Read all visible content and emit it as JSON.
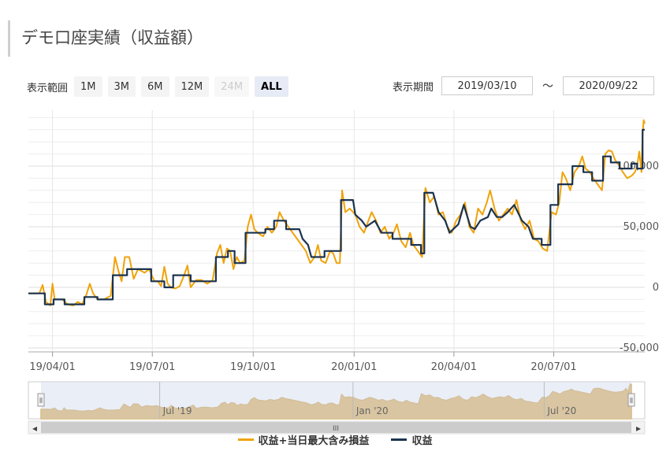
{
  "page": {
    "title": "デモ口座実績（収益額）"
  },
  "range_selector": {
    "label": "表示範囲",
    "buttons": [
      {
        "label": "1M",
        "state": "normal"
      },
      {
        "label": "3M",
        "state": "normal"
      },
      {
        "label": "6M",
        "state": "normal"
      },
      {
        "label": "12M",
        "state": "normal"
      },
      {
        "label": "24M",
        "state": "disabled"
      },
      {
        "label": "ALL",
        "state": "active"
      }
    ]
  },
  "period": {
    "label": "表示期間",
    "from": "2019/03/10",
    "separator": "～",
    "to": "2020/09/22"
  },
  "colors": {
    "series_max_loss": "#f0a30a",
    "series_profit": "#1b3350",
    "navigator_fill": "#d9a441",
    "navigator_mask": "#d9e0f0",
    "grid": "#e6e6e6"
  },
  "chart_data": {
    "type": "line",
    "x_start": "2019/03/10",
    "x_end": "2020/09/22",
    "ylim": [
      -50000,
      140000
    ],
    "y_ticks": [
      "-50,000",
      "0",
      "50,000",
      "100,000"
    ],
    "y_tick_values": [
      -50000,
      0,
      50000,
      100000
    ],
    "x_ticks": [
      "19/04/01",
      "19/07/01",
      "19/10/01",
      "20/01/01",
      "20/04/01",
      "20/07/01"
    ],
    "x_tick_dates": [
      "2019/04/01",
      "2019/07/01",
      "2019/10/01",
      "2020/01/01",
      "2020/04/01",
      "2020/07/01"
    ],
    "grid": true,
    "legend": "bottom-center",
    "series": [
      {
        "name": "収益+当日最大含み損益",
        "key": "max_loss",
        "points": [
          [
            "2019/03/10",
            -5000
          ],
          [
            "2019/03/20",
            -5000
          ],
          [
            "2019/03/23",
            2000
          ],
          [
            "2019/03/26",
            -12000
          ],
          [
            "2019/03/30",
            -15000
          ],
          [
            "2019/04/01",
            3000
          ],
          [
            "2019/04/03",
            -10000
          ],
          [
            "2019/04/10",
            -10000
          ],
          [
            "2019/04/15",
            -14000
          ],
          [
            "2019/04/20",
            -15000
          ],
          [
            "2019/04/24",
            -12000
          ],
          [
            "2019/04/28",
            -14000
          ],
          [
            "2019/05/02",
            -6000
          ],
          [
            "2019/05/05",
            3000
          ],
          [
            "2019/05/08",
            -5000
          ],
          [
            "2019/05/12",
            -10000
          ],
          [
            "2019/05/18",
            -10000
          ],
          [
            "2019/05/24",
            -7000
          ],
          [
            "2019/05/28",
            25000
          ],
          [
            "2019/05/31",
            14000
          ],
          [
            "2019/06/03",
            5000
          ],
          [
            "2019/06/06",
            25000
          ],
          [
            "2019/06/10",
            25000
          ],
          [
            "2019/06/14",
            7000
          ],
          [
            "2019/06/18",
            15000
          ],
          [
            "2019/06/24",
            12000
          ],
          [
            "2019/06/28",
            15000
          ],
          [
            "2019/07/03",
            5000
          ],
          [
            "2019/07/06",
            5000
          ],
          [
            "2019/07/09",
            1000
          ],
          [
            "2019/07/12",
            17000
          ],
          [
            "2019/07/15",
            3000
          ],
          [
            "2019/07/18",
            0
          ],
          [
            "2019/07/22",
            -1000
          ],
          [
            "2019/07/26",
            1000
          ],
          [
            "2019/07/30",
            10000
          ],
          [
            "2019/08/02",
            18000
          ],
          [
            "2019/08/05",
            0
          ],
          [
            "2019/08/10",
            6000
          ],
          [
            "2019/08/15",
            6000
          ],
          [
            "2019/08/20",
            3000
          ],
          [
            "2019/08/25",
            6000
          ],
          [
            "2019/08/29",
            28000
          ],
          [
            "2019/09/01",
            35000
          ],
          [
            "2019/09/04",
            20000
          ],
          [
            "2019/09/07",
            32000
          ],
          [
            "2019/09/10",
            30000
          ],
          [
            "2019/09/13",
            15000
          ],
          [
            "2019/09/16",
            25000
          ],
          [
            "2019/09/19",
            20000
          ],
          [
            "2019/09/23",
            22000
          ],
          [
            "2019/09/26",
            50000
          ],
          [
            "2019/09/29",
            60000
          ],
          [
            "2019/10/02",
            48000
          ],
          [
            "2019/10/05",
            45000
          ],
          [
            "2019/10/10",
            42000
          ],
          [
            "2019/10/14",
            50000
          ],
          [
            "2019/10/18",
            45000
          ],
          [
            "2019/10/22",
            50000
          ],
          [
            "2019/10/25",
            62000
          ],
          [
            "2019/10/29",
            55000
          ],
          [
            "2019/11/02",
            50000
          ],
          [
            "2019/11/06",
            45000
          ],
          [
            "2019/11/10",
            40000
          ],
          [
            "2019/11/14",
            35000
          ],
          [
            "2019/11/18",
            30000
          ],
          [
            "2019/11/22",
            20000
          ],
          [
            "2019/11/26",
            25000
          ],
          [
            "2019/11/29",
            35000
          ],
          [
            "2019/12/02",
            22000
          ],
          [
            "2019/12/06",
            20000
          ],
          [
            "2019/12/10",
            30000
          ],
          [
            "2019/12/13",
            28000
          ],
          [
            "2019/12/16",
            20000
          ],
          [
            "2019/12/19",
            20000
          ],
          [
            "2019/12/21",
            80000
          ],
          [
            "2019/12/24",
            62000
          ],
          [
            "2019/12/28",
            65000
          ],
          [
            "2020/01/02",
            60000
          ],
          [
            "2020/01/06",
            50000
          ],
          [
            "2020/01/10",
            45000
          ],
          [
            "2020/01/14",
            55000
          ],
          [
            "2020/01/17",
            62000
          ],
          [
            "2020/01/21",
            55000
          ],
          [
            "2020/01/25",
            45000
          ],
          [
            "2020/01/29",
            50000
          ],
          [
            "2020/02/02",
            40000
          ],
          [
            "2020/02/06",
            45000
          ],
          [
            "2020/02/09",
            52000
          ],
          [
            "2020/02/13",
            38000
          ],
          [
            "2020/02/17",
            33000
          ],
          [
            "2020/02/21",
            45000
          ],
          [
            "2020/02/24",
            35000
          ],
          [
            "2020/02/28",
            30000
          ],
          [
            "2020/03/03",
            25000
          ],
          [
            "2020/03/06",
            82000
          ],
          [
            "2020/03/10",
            70000
          ],
          [
            "2020/03/14",
            75000
          ],
          [
            "2020/03/18",
            60000
          ],
          [
            "2020/03/22",
            62000
          ],
          [
            "2020/03/26",
            50000
          ],
          [
            "2020/03/30",
            45000
          ],
          [
            "2020/04/03",
            55000
          ],
          [
            "2020/04/07",
            60000
          ],
          [
            "2020/04/11",
            70000
          ],
          [
            "2020/04/15",
            50000
          ],
          [
            "2020/04/19",
            45000
          ],
          [
            "2020/04/23",
            65000
          ],
          [
            "2020/04/27",
            60000
          ],
          [
            "2020/05/01",
            70000
          ],
          [
            "2020/05/04",
            80000
          ],
          [
            "2020/05/08",
            65000
          ],
          [
            "2020/05/12",
            55000
          ],
          [
            "2020/05/16",
            60000
          ],
          [
            "2020/05/20",
            65000
          ],
          [
            "2020/05/24",
            60000
          ],
          [
            "2020/05/28",
            72000
          ],
          [
            "2020/06/01",
            55000
          ],
          [
            "2020/06/05",
            48000
          ],
          [
            "2020/06/09",
            55000
          ],
          [
            "2020/06/13",
            40000
          ],
          [
            "2020/06/17",
            38000
          ],
          [
            "2020/06/21",
            32000
          ],
          [
            "2020/06/25",
            30000
          ],
          [
            "2020/06/29",
            62000
          ],
          [
            "2020/07/03",
            60000
          ],
          [
            "2020/07/06",
            70000
          ],
          [
            "2020/07/09",
            95000
          ],
          [
            "2020/07/12",
            90000
          ],
          [
            "2020/07/16",
            80000
          ],
          [
            "2020/07/20",
            95000
          ],
          [
            "2020/07/24",
            100000
          ],
          [
            "2020/07/27",
            108000
          ],
          [
            "2020/07/30",
            98000
          ],
          [
            "2020/08/03",
            95000
          ],
          [
            "2020/08/06",
            90000
          ],
          [
            "2020/08/10",
            85000
          ],
          [
            "2020/08/14",
            80000
          ],
          [
            "2020/08/17",
            110000
          ],
          [
            "2020/08/20",
            113000
          ],
          [
            "2020/08/23",
            112000
          ],
          [
            "2020/08/26",
            105000
          ],
          [
            "2020/08/30",
            100000
          ],
          [
            "2020/09/02",
            95000
          ],
          [
            "2020/09/06",
            90000
          ],
          [
            "2020/09/10",
            92000
          ],
          [
            "2020/09/13",
            95000
          ],
          [
            "2020/09/15",
            100000
          ],
          [
            "2020/09/17",
            112000
          ],
          [
            "2020/09/19",
            95000
          ],
          [
            "2020/09/20",
            125000
          ],
          [
            "2020/09/21",
            138000
          ],
          [
            "2020/09/22",
            135000
          ]
        ]
      },
      {
        "name": "収益",
        "key": "profit",
        "points": [
          [
            "2019/03/10",
            -5000
          ],
          [
            "2019/03/25",
            -5000
          ],
          [
            "2019/03/25",
            -14000
          ],
          [
            "2019/04/02",
            -14000
          ],
          [
            "2019/04/02",
            -10000
          ],
          [
            "2019/04/12",
            -10000
          ],
          [
            "2019/04/12",
            -14000
          ],
          [
            "2019/04/30",
            -14000
          ],
          [
            "2019/04/30",
            -8000
          ],
          [
            "2019/05/12",
            -8000
          ],
          [
            "2019/05/12",
            -10000
          ],
          [
            "2019/05/26",
            -10000
          ],
          [
            "2019/05/26",
            10000
          ],
          [
            "2019/06/08",
            10000
          ],
          [
            "2019/06/08",
            15000
          ],
          [
            "2019/06/30",
            15000
          ],
          [
            "2019/06/30",
            5000
          ],
          [
            "2019/07/12",
            5000
          ],
          [
            "2019/07/12",
            0
          ],
          [
            "2019/07/20",
            0
          ],
          [
            "2019/07/20",
            10000
          ],
          [
            "2019/08/05",
            10000
          ],
          [
            "2019/08/05",
            5000
          ],
          [
            "2019/08/28",
            5000
          ],
          [
            "2019/08/28",
            25000
          ],
          [
            "2019/09/08",
            25000
          ],
          [
            "2019/09/08",
            30000
          ],
          [
            "2019/09/14",
            30000
          ],
          [
            "2019/09/14",
            20000
          ],
          [
            "2019/09/24",
            20000
          ],
          [
            "2019/09/24",
            45000
          ],
          [
            "2019/10/12",
            45000
          ],
          [
            "2019/10/12",
            48000
          ],
          [
            "2019/10/20",
            48000
          ],
          [
            "2019/10/20",
            55000
          ],
          [
            "2019/10/31",
            55000
          ],
          [
            "2019/10/31",
            48000
          ],
          [
            "2019/11/12",
            48000
          ],
          [
            "2019/11/15",
            40000
          ],
          [
            "2019/11/20",
            35000
          ],
          [
            "2019/11/23",
            25000
          ],
          [
            "2019/12/05",
            25000
          ],
          [
            "2019/12/05",
            30000
          ],
          [
            "2019/12/20",
            30000
          ],
          [
            "2019/12/20",
            72000
          ],
          [
            "2019/12/31",
            72000
          ],
          [
            "2020/01/02",
            60000
          ],
          [
            "2020/01/08",
            55000
          ],
          [
            "2020/01/12",
            50000
          ],
          [
            "2020/01/20",
            55000
          ],
          [
            "2020/01/26",
            45000
          ],
          [
            "2020/02/05",
            45000
          ],
          [
            "2020/02/05",
            40000
          ],
          [
            "2020/02/22",
            40000
          ],
          [
            "2020/02/22",
            35000
          ],
          [
            "2020/03/02",
            35000
          ],
          [
            "2020/03/02",
            28000
          ],
          [
            "2020/03/05",
            28000
          ],
          [
            "2020/03/05",
            78000
          ],
          [
            "2020/03/13",
            78000
          ],
          [
            "2020/03/18",
            62000
          ],
          [
            "2020/03/24",
            55000
          ],
          [
            "2020/03/28",
            45000
          ],
          [
            "2020/04/05",
            52000
          ],
          [
            "2020/04/10",
            68000
          ],
          [
            "2020/04/16",
            50000
          ],
          [
            "2020/04/20",
            48000
          ],
          [
            "2020/04/25",
            55000
          ],
          [
            "2020/05/02",
            58000
          ],
          [
            "2020/05/05",
            65000
          ],
          [
            "2020/05/10",
            58000
          ],
          [
            "2020/05/15",
            58000
          ],
          [
            "2020/05/20",
            62000
          ],
          [
            "2020/05/26",
            68000
          ],
          [
            "2020/06/02",
            55000
          ],
          [
            "2020/06/08",
            50000
          ],
          [
            "2020/06/12",
            40000
          ],
          [
            "2020/06/20",
            40000
          ],
          [
            "2020/06/20",
            35000
          ],
          [
            "2020/06/28",
            35000
          ],
          [
            "2020/06/28",
            68000
          ],
          [
            "2020/07/05",
            68000
          ],
          [
            "2020/07/05",
            85000
          ],
          [
            "2020/07/18",
            85000
          ],
          [
            "2020/07/18",
            100000
          ],
          [
            "2020/07/28",
            100000
          ],
          [
            "2020/07/28",
            95000
          ],
          [
            "2020/08/05",
            95000
          ],
          [
            "2020/08/05",
            88000
          ],
          [
            "2020/08/15",
            88000
          ],
          [
            "2020/08/15",
            108000
          ],
          [
            "2020/08/22",
            108000
          ],
          [
            "2020/08/22",
            103000
          ],
          [
            "2020/08/30",
            103000
          ],
          [
            "2020/08/30",
            98000
          ],
          [
            "2020/09/10",
            98000
          ],
          [
            "2020/09/10",
            102000
          ],
          [
            "2020/09/15",
            102000
          ],
          [
            "2020/09/15",
            98000
          ],
          [
            "2020/09/20",
            98000
          ],
          [
            "2020/09/20",
            130000
          ],
          [
            "2020/09/22",
            130000
          ]
        ]
      }
    ]
  },
  "navigator": {
    "labels": [
      "Jul '19",
      "Jan '20",
      "Jul '20"
    ],
    "label_dates": [
      "2019/07/01",
      "2020/01/01",
      "2020/07/01"
    ],
    "handle_glyph": "⦀",
    "scroll_left": "◂",
    "scroll_right": "▸",
    "scroll_grip": "III"
  }
}
